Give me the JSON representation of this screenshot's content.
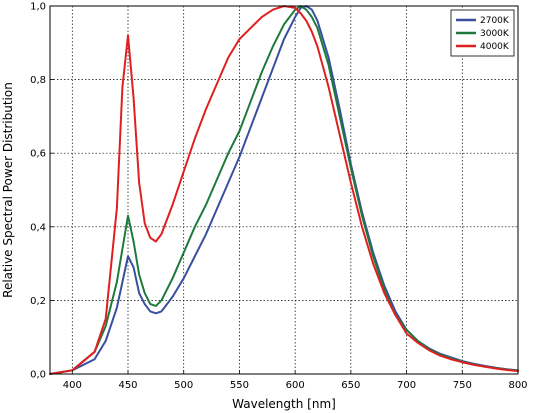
{
  "chart_data": {
    "type": "line",
    "title": "",
    "xlabel": "Wavelength [nm]",
    "ylabel": "Relative Spectral Power Distribution",
    "xlim": [
      380,
      800
    ],
    "ylim": [
      0.0,
      1.0
    ],
    "grid": true,
    "legend_position": "top-right",
    "x_ticks": [
      400,
      450,
      500,
      550,
      600,
      650,
      700,
      750,
      800
    ],
    "x_tick_labels": [
      "400",
      "450",
      "500",
      "550",
      "600",
      "650",
      "700",
      "750",
      "800"
    ],
    "y_ticks": [
      0.0,
      0.2,
      0.4,
      0.6,
      0.8,
      1.0
    ],
    "y_tick_labels": [
      "0,0",
      "0,2",
      "0,4",
      "0,6",
      "0,8",
      "1,0"
    ],
    "x": [
      380,
      400,
      420,
      430,
      440,
      445,
      450,
      455,
      460,
      465,
      470,
      475,
      480,
      490,
      500,
      510,
      520,
      530,
      540,
      550,
      560,
      570,
      580,
      590,
      600,
      605,
      610,
      615,
      620,
      630,
      640,
      650,
      660,
      670,
      680,
      690,
      700,
      710,
      720,
      730,
      740,
      750,
      760,
      770,
      780,
      790,
      800
    ],
    "series": [
      {
        "name": "2700K",
        "color": "#3a4fa0",
        "values": [
          0.0,
          0.01,
          0.04,
          0.09,
          0.18,
          0.25,
          0.32,
          0.29,
          0.22,
          0.19,
          0.17,
          0.165,
          0.17,
          0.21,
          0.26,
          0.32,
          0.38,
          0.45,
          0.52,
          0.59,
          0.67,
          0.75,
          0.83,
          0.91,
          0.97,
          0.995,
          1.0,
          0.99,
          0.96,
          0.86,
          0.72,
          0.57,
          0.44,
          0.33,
          0.24,
          0.17,
          0.12,
          0.09,
          0.07,
          0.055,
          0.045,
          0.035,
          0.028,
          0.022,
          0.017,
          0.013,
          0.01
        ]
      },
      {
        "name": "3000K",
        "color": "#1e7a3c",
        "values": [
          0.0,
          0.01,
          0.06,
          0.13,
          0.25,
          0.34,
          0.43,
          0.36,
          0.27,
          0.22,
          0.19,
          0.185,
          0.2,
          0.26,
          0.33,
          0.4,
          0.46,
          0.53,
          0.6,
          0.66,
          0.74,
          0.82,
          0.89,
          0.95,
          0.99,
          1.0,
          0.99,
          0.97,
          0.94,
          0.84,
          0.7,
          0.56,
          0.43,
          0.32,
          0.23,
          0.16,
          0.12,
          0.09,
          0.068,
          0.053,
          0.042,
          0.033,
          0.026,
          0.02,
          0.016,
          0.012,
          0.009
        ]
      },
      {
        "name": "4000K",
        "color": "#e02020",
        "values": [
          0.0,
          0.01,
          0.06,
          0.15,
          0.45,
          0.78,
          0.92,
          0.75,
          0.52,
          0.41,
          0.37,
          0.36,
          0.38,
          0.46,
          0.55,
          0.64,
          0.72,
          0.79,
          0.86,
          0.91,
          0.94,
          0.97,
          0.99,
          1.0,
          0.995,
          0.98,
          0.96,
          0.93,
          0.89,
          0.78,
          0.65,
          0.52,
          0.4,
          0.3,
          0.22,
          0.16,
          0.11,
          0.085,
          0.065,
          0.05,
          0.04,
          0.032,
          0.025,
          0.02,
          0.015,
          0.011,
          0.008
        ]
      }
    ]
  }
}
